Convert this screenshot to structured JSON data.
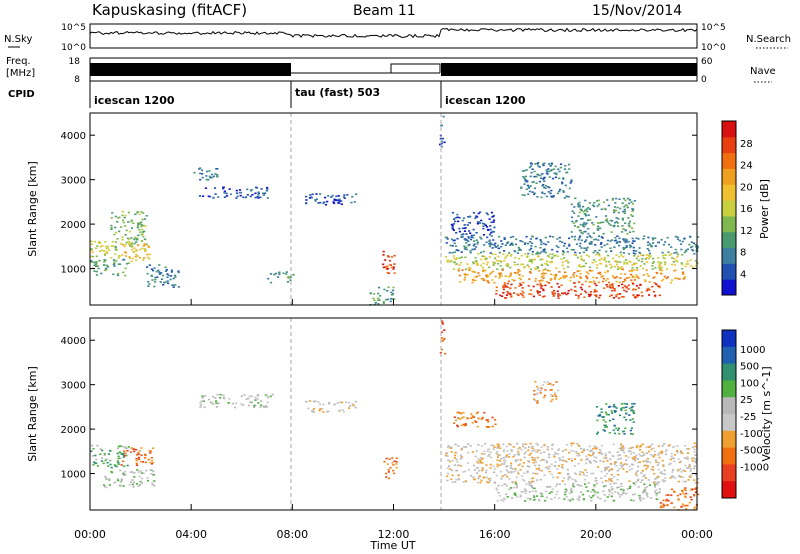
{
  "header": {
    "station": "Kapuskasing (fitACF)",
    "beam": "Beam 11",
    "date": "15/Nov/2014"
  },
  "colors": {
    "power_scale": [
      "#1010d0",
      "#2050b0",
      "#3c7fa0",
      "#4a9a70",
      "#80b850",
      "#c8d040",
      "#f0c030",
      "#f0a020",
      "#f07010",
      "#e84010",
      "#d81010"
    ],
    "velocity_scale": [
      "#1030c0",
      "#2060b0",
      "#309070",
      "#50b040",
      "#b8b8b8",
      "#c8c8c8",
      "#f0a030",
      "#f07010",
      "#e84020",
      "#e01010"
    ]
  },
  "top_panels": {
    "nsky_label": "N.Sky",
    "nsky_ticks": [
      "10^5",
      "10^0"
    ],
    "nsearch_label": "N.Search",
    "nsearch_ticks": [
      "10^5",
      "10^0"
    ],
    "freq_label": "Freq.",
    "freq_unit": "[MHz]",
    "freq_ticks": [
      "18",
      "8"
    ],
    "nave_label": "Nave",
    "nave_ticks": [
      "60",
      "0"
    ],
    "cpid_label": "CPID",
    "cpid_segments": [
      {
        "label": "icescan 1200",
        "start": 0,
        "end": 8
      },
      {
        "label": "tau (fast) 503",
        "start": 8,
        "end": 14
      },
      {
        "label": "icescan 1200",
        "start": 14,
        "end": 24
      }
    ]
  },
  "chart_data": [
    {
      "type": "heatmap",
      "quantity": "power",
      "ylabel": "Slant Range [km]",
      "ylim": [
        180,
        4500
      ],
      "yticks": [
        "1000",
        "2000",
        "3000",
        "4000"
      ],
      "ytick_values": [
        1000,
        2000,
        3000,
        4000
      ],
      "xlim": [
        0,
        24
      ],
      "colorbar_label": "Power [dB]",
      "colorbar_ticks": [
        "4",
        "8",
        "12",
        "16",
        "20",
        "24",
        "28"
      ],
      "colorbar_values": [
        4,
        8,
        12,
        16,
        20,
        24,
        28
      ],
      "colorbar_range": [
        0,
        32
      ],
      "regions": [
        {
          "t0": 0.0,
          "t1": 1.2,
          "r0": 1250,
          "r1": 1650,
          "level": 5
        },
        {
          "t0": 0.0,
          "t1": 1.5,
          "r0": 850,
          "r1": 1250,
          "level": 3
        },
        {
          "t0": 0.8,
          "t1": 2.2,
          "r0": 1500,
          "r1": 2300,
          "level": 4
        },
        {
          "t0": 1.2,
          "t1": 2.4,
          "r0": 1150,
          "r1": 1600,
          "level": 6
        },
        {
          "t0": 2.2,
          "t1": 3.5,
          "r0": 600,
          "r1": 1100,
          "level": 2
        },
        {
          "t0": 4.0,
          "t1": 5.0,
          "r0": 3000,
          "r1": 3300,
          "level": 2
        },
        {
          "t0": 4.3,
          "t1": 7.0,
          "r0": 2600,
          "r1": 2850,
          "level": 1
        },
        {
          "t0": 7.0,
          "t1": 8.0,
          "r0": 700,
          "r1": 950,
          "level": 3
        },
        {
          "t0": 8.5,
          "t1": 10.5,
          "r0": 2450,
          "r1": 2700,
          "level": 1
        },
        {
          "t0": 9.5,
          "t1": 10.0,
          "r0": 2450,
          "r1": 2650,
          "level": 0
        },
        {
          "t0": 11.5,
          "t1": 12.1,
          "r0": 900,
          "r1": 1400,
          "level": 9
        },
        {
          "t0": 11.0,
          "t1": 12.0,
          "r0": 200,
          "r1": 600,
          "level": 3
        },
        {
          "t0": 13.8,
          "t1": 14.0,
          "r0": 3700,
          "r1": 4450,
          "level": 1
        },
        {
          "t0": 14.0,
          "t1": 24.0,
          "r0": 1350,
          "r1": 1750,
          "level": 2
        },
        {
          "t0": 14.0,
          "t1": 24.0,
          "r0": 1000,
          "r1": 1350,
          "level": 5
        },
        {
          "t0": 14.5,
          "t1": 23.5,
          "r0": 700,
          "r1": 1000,
          "level": 7
        },
        {
          "t0": 16.0,
          "t1": 22.5,
          "r0": 350,
          "r1": 700,
          "level": 9
        },
        {
          "t0": 14.2,
          "t1": 16.0,
          "r0": 1750,
          "r1": 2300,
          "level": 1
        },
        {
          "t0": 19.0,
          "t1": 21.5,
          "r0": 1800,
          "r1": 2600,
          "level": 3
        },
        {
          "t0": 17.0,
          "t1": 19.0,
          "r0": 2600,
          "r1": 3400,
          "level": 2
        }
      ]
    },
    {
      "type": "heatmap",
      "quantity": "velocity",
      "ylabel": "Slant Range [km]",
      "ylim": [
        180,
        4500
      ],
      "yticks": [
        "1000",
        "2000",
        "3000",
        "4000"
      ],
      "ytick_values": [
        1000,
        2000,
        3000,
        4000
      ],
      "xlim": [
        0,
        24
      ],
      "xlabel": "Time UT",
      "xticks": [
        "00:00",
        "04:00",
        "08:00",
        "12:00",
        "16:00",
        "20:00",
        "00:00"
      ],
      "xtick_values": [
        0,
        4,
        8,
        12,
        16,
        20,
        24
      ],
      "colorbar_label": "Velocity [m s^-1]",
      "colorbar_ticks": [
        "1000",
        "500",
        "100",
        "25",
        "-25",
        "-100",
        "-500",
        "-1000"
      ],
      "regions": [
        {
          "t0": 0.0,
          "t1": 1.5,
          "r0": 1150,
          "r1": 1650,
          "level": 3
        },
        {
          "t0": 1.2,
          "t1": 2.5,
          "r0": 1200,
          "r1": 1600,
          "level": 7
        },
        {
          "t0": 0.5,
          "t1": 2.5,
          "r0": 700,
          "r1": 1100,
          "level": 4
        },
        {
          "t0": 4.3,
          "t1": 7.2,
          "r0": 2500,
          "r1": 2800,
          "level": 4
        },
        {
          "t0": 8.5,
          "t1": 10.5,
          "r0": 2400,
          "r1": 2650,
          "level": 5
        },
        {
          "t0": 11.6,
          "t1": 12.1,
          "r0": 900,
          "r1": 1400,
          "level": 7
        },
        {
          "t0": 13.8,
          "t1": 14.0,
          "r0": 3700,
          "r1": 4450,
          "level": 8
        },
        {
          "t0": 14.0,
          "t1": 24.0,
          "r0": 800,
          "r1": 1700,
          "level": 5
        },
        {
          "t0": 16.0,
          "t1": 22.5,
          "r0": 400,
          "r1": 800,
          "level": 4
        },
        {
          "t0": 14.3,
          "t1": 16.0,
          "r0": 2050,
          "r1": 2400,
          "level": 7
        },
        {
          "t0": 17.5,
          "t1": 18.5,
          "r0": 2600,
          "r1": 3100,
          "level": 6
        },
        {
          "t0": 20.0,
          "t1": 21.5,
          "r0": 1900,
          "r1": 2600,
          "level": 2
        },
        {
          "t0": 22.5,
          "t1": 24.0,
          "r0": 200,
          "r1": 700,
          "level": 7
        }
      ]
    }
  ]
}
